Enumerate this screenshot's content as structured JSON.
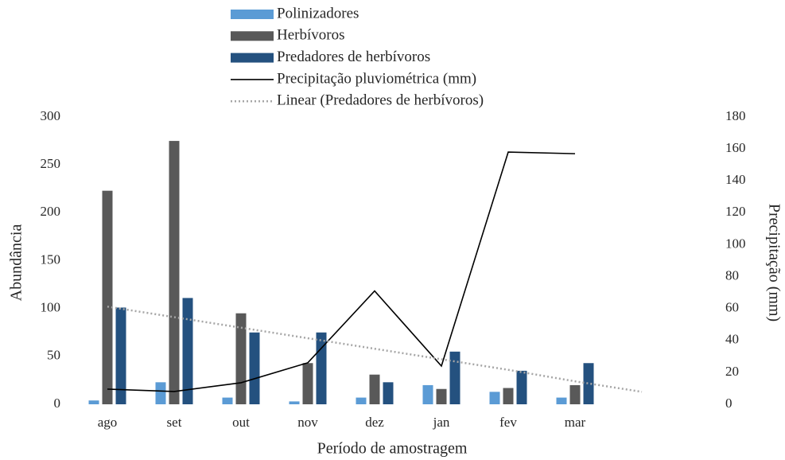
{
  "chart_data": {
    "type": "bar",
    "categories": [
      "ago",
      "set",
      "out",
      "nov",
      "dez",
      "jan",
      "fev",
      "mar",
      null
    ],
    "series": [
      {
        "name": "Polinizadores",
        "color": "#5b9bd5",
        "values": [
          4,
          23,
          7,
          3,
          7,
          20,
          13,
          7,
          null
        ]
      },
      {
        "name": "Herbívoros",
        "color": "#595959",
        "values": [
          223,
          275,
          95,
          43,
          31,
          16,
          17,
          20,
          null
        ]
      },
      {
        "name": "Predadores de herbívoros",
        "color": "#24517f",
        "values": [
          101,
          111,
          75,
          75,
          23,
          55,
          35,
          43,
          null
        ]
      },
      {
        "name": "Precipitação pluviométrica (mm)",
        "type": "line",
        "axis": "y2",
        "color": "#000000",
        "values": [
          9.5,
          8,
          13.5,
          26,
          71,
          24,
          158,
          157,
          null
        ]
      },
      {
        "name": "Linear (Predadores de herbívoros)",
        "type": "trend",
        "color": "#a6a6a6",
        "values": [
          102,
          91,
          80,
          69,
          58,
          47,
          36,
          24,
          13
        ]
      }
    ],
    "ylim": [
      0,
      300
    ],
    "yticks": [
      0,
      50,
      100,
      150,
      200,
      250,
      300
    ],
    "y2lim": [
      0,
      180
    ],
    "y2ticks": [
      0,
      20,
      40,
      60,
      80,
      100,
      120,
      140,
      160,
      180
    ],
    "y_label": "Abundância",
    "y2_label": "Precipitação (mm)",
    "x_label": "Período de amostragem",
    "grid": false,
    "legend": "top"
  }
}
